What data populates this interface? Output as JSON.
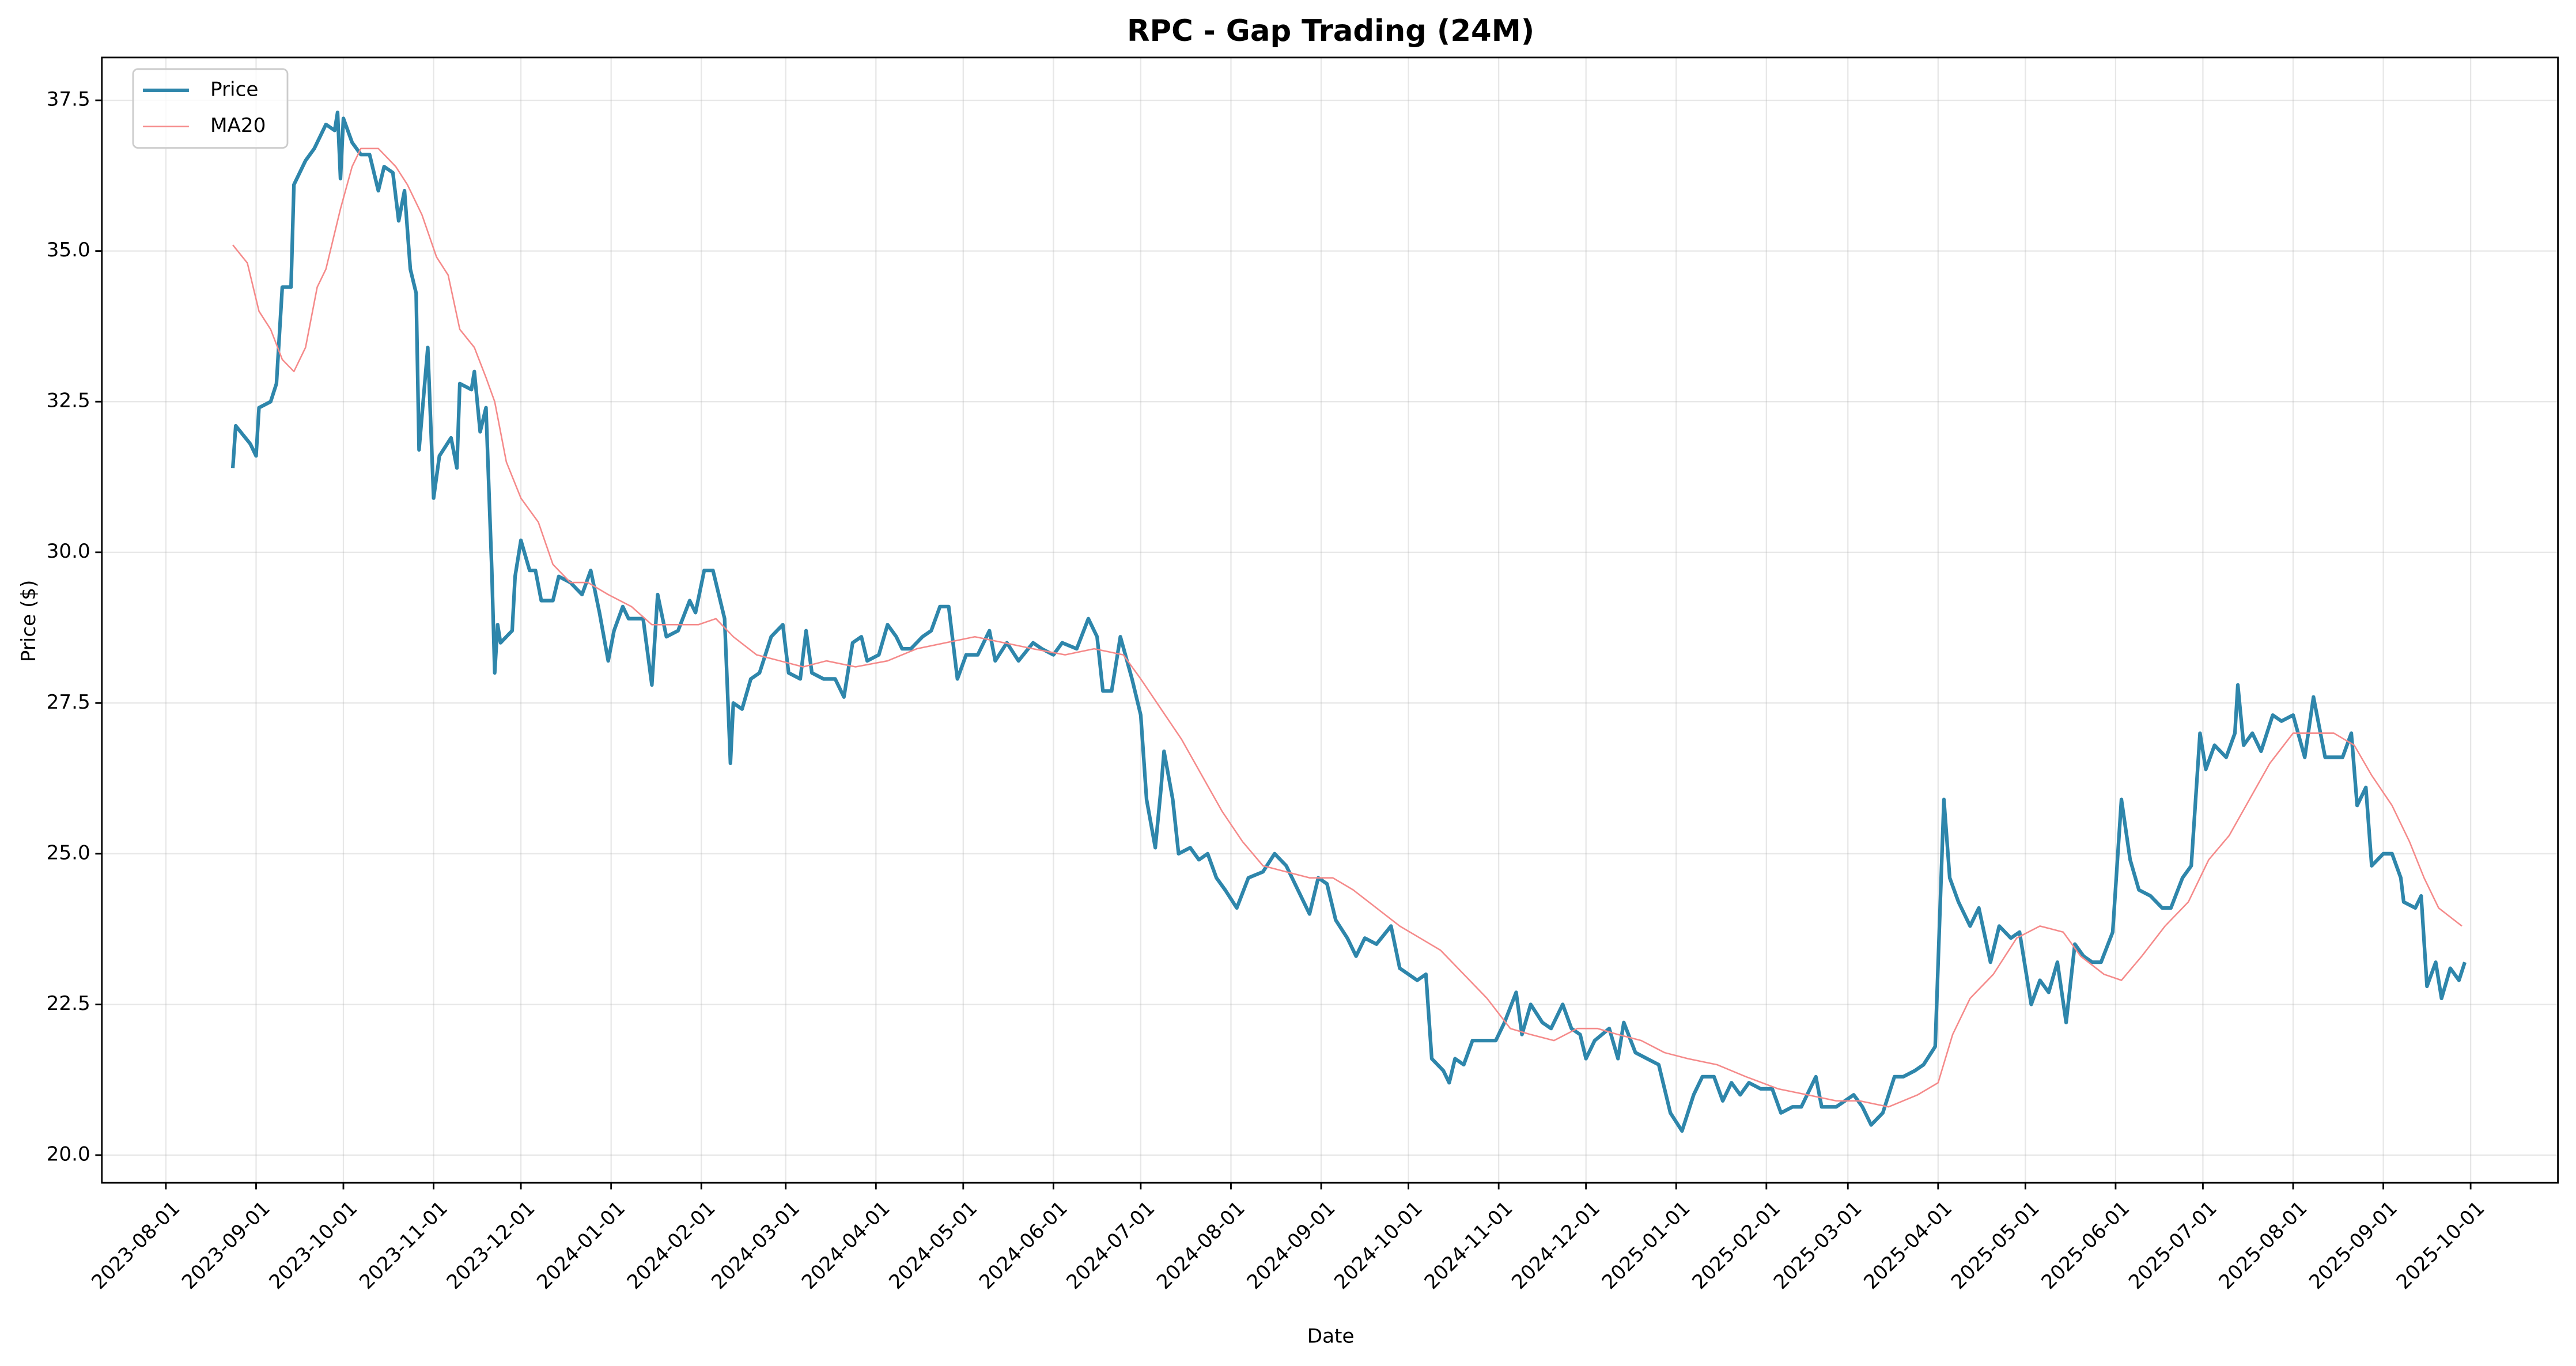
{
  "chart_data": {
    "type": "line",
    "title": "RPC - Gap Trading (24M)",
    "x_label": "Date",
    "y_label": "Price ($)",
    "xlim": [
      "2023-07-10",
      "2025-10-31"
    ],
    "xticks": [
      "2023-08-01",
      "2023-09-01",
      "2023-10-01",
      "2023-11-01",
      "2023-12-01",
      "2024-01-01",
      "2024-02-01",
      "2024-03-01",
      "2024-04-01",
      "2024-05-01",
      "2024-06-01",
      "2024-07-01",
      "2024-08-01",
      "2024-09-01",
      "2024-10-01",
      "2024-11-01",
      "2024-12-01",
      "2025-01-01",
      "2025-02-01",
      "2025-03-01",
      "2025-04-01",
      "2025-05-01",
      "2025-06-01",
      "2025-07-01",
      "2025-08-01",
      "2025-09-01",
      "2025-10-01"
    ],
    "ylim": [
      19.54,
      38.21
    ],
    "yticks": [
      {
        "value": 20,
        "label": "20.0"
      },
      22.5,
      {
        "value": 25,
        "label": "25.0"
      },
      27.5,
      {
        "value": 30,
        "label": "30.0"
      },
      32.5,
      {
        "value": 35,
        "label": "35.0"
      },
      37.5
    ],
    "grid": true,
    "legend": "upper left",
    "series": [
      {
        "name": "Price",
        "color": "#2e86ab",
        "x": [
          "2023-08-24",
          "2023-08-25",
          "2023-08-30",
          "2023-09-01",
          "2023-09-02",
          "2023-09-06",
          "2023-09-08",
          "2023-09-10",
          "2023-09-13",
          "2023-09-14",
          "2023-09-18",
          "2023-09-21",
          "2023-09-25",
          "2023-09-28",
          "2023-09-29",
          "2023-09-30",
          "2023-10-01",
          "2023-10-04",
          "2023-10-07",
          "2023-10-10",
          "2023-10-13",
          "2023-10-15",
          "2023-10-18",
          "2023-10-20",
          "2023-10-22",
          "2023-10-24",
          "2023-10-26",
          "2023-10-27",
          "2023-10-30",
          "2023-11-01",
          "2023-11-03",
          "2023-11-07",
          "2023-11-09",
          "2023-11-10",
          "2023-11-14",
          "2023-11-15",
          "2023-11-17",
          "2023-11-19",
          "2023-11-21",
          "2023-11-22",
          "2023-11-23",
          "2023-11-24",
          "2023-11-28",
          "2023-11-29",
          "2023-12-01",
          "2023-12-04",
          "2023-12-06",
          "2023-12-08",
          "2023-12-12",
          "2023-12-14",
          "2023-12-18",
          "2023-12-22",
          "2023-12-25",
          "2023-12-28",
          "2023-12-31",
          "2024-01-02",
          "2024-01-05",
          "2024-01-07",
          "2024-01-12",
          "2024-01-15",
          "2024-01-17",
          "2024-01-20",
          "2024-01-24",
          "2024-01-28",
          "2024-01-30",
          "2024-02-02",
          "2024-02-05",
          "2024-02-09",
          "2024-02-11",
          "2024-02-12",
          "2024-02-15",
          "2024-02-18",
          "2024-02-21",
          "2024-02-25",
          "2024-02-27",
          "2024-02-29",
          "2024-03-02",
          "2024-03-06",
          "2024-03-08",
          "2024-03-10",
          "2024-03-14",
          "2024-03-18",
          "2024-03-21",
          "2024-03-24",
          "2024-03-27",
          "2024-03-29",
          "2024-04-02",
          "2024-04-05",
          "2024-04-08",
          "2024-04-10",
          "2024-04-13",
          "2024-04-17",
          "2024-04-20",
          "2024-04-23",
          "2024-04-26",
          "2024-04-29",
          "2024-05-02",
          "2024-05-06",
          "2024-05-10",
          "2024-05-12",
          "2024-05-16",
          "2024-05-20",
          "2024-05-25",
          "2024-05-28",
          "2024-06-01",
          "2024-06-04",
          "2024-06-09",
          "2024-06-13",
          "2024-06-16",
          "2024-06-18",
          "2024-06-21",
          "2024-06-24",
          "2024-06-28",
          "2024-07-01",
          "2024-07-03",
          "2024-07-06",
          "2024-07-08",
          "2024-07-09",
          "2024-07-12",
          "2024-07-14",
          "2024-07-18",
          "2024-07-21",
          "2024-07-24",
          "2024-07-27",
          "2024-07-30",
          "2024-08-03",
          "2024-08-07",
          "2024-08-12",
          "2024-08-16",
          "2024-08-20",
          "2024-08-24",
          "2024-08-28",
          "2024-08-31",
          "2024-09-03",
          "2024-09-06",
          "2024-09-10",
          "2024-09-13",
          "2024-09-16",
          "2024-09-20",
          "2024-09-25",
          "2024-09-28",
          "2024-10-01",
          "2024-10-04",
          "2024-10-07",
          "2024-10-09",
          "2024-10-13",
          "2024-10-15",
          "2024-10-17",
          "2024-10-20",
          "2024-10-23",
          "2024-10-27",
          "2024-10-31",
          "2024-11-03",
          "2024-11-07",
          "2024-11-09",
          "2024-11-12",
          "2024-11-16",
          "2024-11-19",
          "2024-11-23",
          "2024-11-26",
          "2024-11-29",
          "2024-12-01",
          "2024-12-04",
          "2024-12-09",
          "2024-12-12",
          "2024-12-14",
          "2024-12-18",
          "2024-12-22",
          "2024-12-26",
          "2024-12-30",
          "2025-01-03",
          "2025-01-07",
          "2025-01-10",
          "2025-01-14",
          "2025-01-17",
          "2025-01-20",
          "2025-01-23",
          "2025-01-26",
          "2025-01-30",
          "2025-02-03",
          "2025-02-06",
          "2025-02-10",
          "2025-02-13",
          "2025-02-18",
          "2025-02-20",
          "2025-02-25",
          "2025-02-28",
          "2025-03-03",
          "2025-03-06",
          "2025-03-09",
          "2025-03-13",
          "2025-03-17",
          "2025-03-20",
          "2025-03-24",
          "2025-03-27",
          "2025-03-31",
          "2025-04-03",
          "2025-04-05",
          "2025-04-08",
          "2025-04-12",
          "2025-04-15",
          "2025-04-19",
          "2025-04-22",
          "2025-04-26",
          "2025-04-29",
          "2025-05-03",
          "2025-05-06",
          "2025-05-09",
          "2025-05-12",
          "2025-05-15",
          "2025-05-18",
          "2025-05-21",
          "2025-05-24",
          "2025-05-27",
          "2025-05-31",
          "2025-06-03",
          "2025-06-06",
          "2025-06-09",
          "2025-06-13",
          "2025-06-17",
          "2025-06-20",
          "2025-06-24",
          "2025-06-27",
          "2025-06-30",
          "2025-07-02",
          "2025-07-05",
          "2025-07-09",
          "2025-07-12",
          "2025-07-13",
          "2025-07-15",
          "2025-07-18",
          "2025-07-21",
          "2025-07-25",
          "2025-07-28",
          "2025-08-01",
          "2025-08-05",
          "2025-08-08",
          "2025-08-12",
          "2025-08-15",
          "2025-08-18",
          "2025-08-21",
          "2025-08-23",
          "2025-08-26",
          "2025-08-28",
          "2025-09-01",
          "2025-09-04",
          "2025-09-07",
          "2025-09-08",
          "2025-09-12",
          "2025-09-14",
          "2025-09-16",
          "2025-09-19",
          "2025-09-21",
          "2025-09-24",
          "2025-09-27",
          "2025-09-29"
        ],
        "values": [
          31.4,
          32.1,
          31.8,
          31.6,
          32.4,
          32.5,
          32.8,
          34.4,
          34.4,
          36.1,
          36.5,
          36.7,
          37.1,
          37.0,
          37.3,
          36.2,
          37.2,
          36.8,
          36.6,
          36.6,
          36.0,
          36.4,
          36.3,
          35.5,
          36.0,
          34.7,
          34.3,
          31.7,
          33.4,
          30.9,
          31.6,
          31.9,
          31.4,
          32.8,
          32.7,
          33.0,
          32.0,
          32.4,
          29.7,
          28.0,
          28.8,
          28.5,
          28.7,
          29.6,
          30.2,
          29.7,
          29.7,
          29.2,
          29.2,
          29.6,
          29.5,
          29.3,
          29.7,
          29.0,
          28.2,
          28.7,
          29.1,
          28.9,
          28.9,
          27.8,
          29.3,
          28.6,
          28.7,
          29.2,
          29.0,
          29.7,
          29.7,
          28.9,
          26.5,
          27.5,
          27.4,
          27.9,
          28.0,
          28.6,
          28.7,
          28.8,
          28.0,
          27.9,
          28.7,
          28.0,
          27.9,
          27.9,
          27.6,
          28.5,
          28.6,
          28.2,
          28.3,
          28.8,
          28.6,
          28.4,
          28.4,
          28.6,
          28.7,
          29.1,
          29.1,
          27.9,
          28.3,
          28.3,
          28.7,
          28.2,
          28.5,
          28.2,
          28.5,
          28.4,
          28.3,
          28.5,
          28.4,
          28.9,
          28.6,
          27.7,
          27.7,
          28.6,
          27.9,
          27.3,
          25.9,
          25.1,
          26.1,
          26.7,
          25.9,
          25.0,
          25.1,
          24.9,
          25.0,
          24.6,
          24.4,
          24.1,
          24.6,
          24.7,
          25.0,
          24.8,
          24.4,
          24.0,
          24.6,
          24.5,
          23.9,
          23.6,
          23.3,
          23.6,
          23.5,
          23.8,
          23.1,
          23.0,
          22.9,
          23.0,
          21.6,
          21.4,
          21.2,
          21.6,
          21.5,
          21.9,
          21.9,
          21.9,
          22.2,
          22.7,
          22.0,
          22.5,
          22.2,
          22.1,
          22.5,
          22.1,
          22.0,
          21.6,
          21.9,
          22.1,
          21.6,
          22.2,
          21.7,
          21.6,
          21.5,
          20.7,
          20.4,
          21.0,
          21.3,
          21.3,
          20.9,
          21.2,
          21.0,
          21.2,
          21.1,
          21.1,
          20.7,
          20.8,
          20.8,
          21.3,
          20.8,
          20.8,
          20.9,
          21.0,
          20.8,
          20.5,
          20.7,
          21.3,
          21.3,
          21.4,
          21.5,
          21.8,
          25.9,
          24.6,
          24.2,
          23.8,
          24.1,
          23.2,
          23.8,
          23.6,
          23.7,
          22.5,
          22.9,
          22.7,
          23.2,
          22.2,
          23.5,
          23.3,
          23.2,
          23.2,
          23.7,
          25.9,
          24.9,
          24.4,
          24.3,
          24.1,
          24.1,
          24.6,
          24.8,
          27.0,
          26.4,
          26.8,
          26.6,
          27.0,
          27.8,
          26.8,
          27.0,
          26.7,
          27.3,
          27.2,
          27.3,
          26.6,
          27.6,
          26.6,
          26.6,
          26.6,
          27.0,
          25.8,
          26.1,
          24.8,
          25.0,
          25.0,
          24.6,
          24.2,
          24.1,
          24.3,
          22.8,
          23.2,
          22.6,
          23.1,
          22.9,
          23.2
        ]
      },
      {
        "name": "MA20",
        "color": "#f58a8a",
        "x": [
          "2023-08-24",
          "2023-08-29",
          "2023-09-02",
          "2023-09-06",
          "2023-09-10",
          "2023-09-14",
          "2023-09-18",
          "2023-09-22",
          "2023-09-25",
          "2023-09-30",
          "2023-10-04",
          "2023-10-07",
          "2023-10-13",
          "2023-10-19",
          "2023-10-23",
          "2023-10-28",
          "2023-11-02",
          "2023-11-06",
          "2023-11-10",
          "2023-11-15",
          "2023-11-19",
          "2023-11-22",
          "2023-11-26",
          "2023-12-01",
          "2023-12-07",
          "2023-12-12",
          "2023-12-18",
          "2023-12-24",
          "2023-12-31",
          "2024-01-08",
          "2024-01-15",
          "2024-01-22",
          "2024-01-31",
          "2024-02-06",
          "2024-02-12",
          "2024-02-20",
          "2024-02-28",
          "2024-03-07",
          "2024-03-15",
          "2024-03-25",
          "2024-04-05",
          "2024-04-15",
          "2024-04-25",
          "2024-05-05",
          "2024-05-15",
          "2024-05-25",
          "2024-06-05",
          "2024-06-15",
          "2024-06-25",
          "2024-07-01",
          "2024-07-08",
          "2024-07-15",
          "2024-07-22",
          "2024-07-29",
          "2024-08-05",
          "2024-08-12",
          "2024-08-20",
          "2024-08-28",
          "2024-09-05",
          "2024-09-12",
          "2024-09-20",
          "2024-09-28",
          "2024-10-05",
          "2024-10-12",
          "2024-10-20",
          "2024-10-28",
          "2024-11-05",
          "2024-11-12",
          "2024-11-20",
          "2024-11-28",
          "2024-12-05",
          "2024-12-12",
          "2024-12-20",
          "2024-12-28",
          "2025-01-05",
          "2025-01-15",
          "2025-01-25",
          "2025-02-05",
          "2025-02-15",
          "2025-02-25",
          "2025-03-05",
          "2025-03-15",
          "2025-03-25",
          "2025-04-01",
          "2025-04-06",
          "2025-04-12",
          "2025-04-20",
          "2025-04-28",
          "2025-05-06",
          "2025-05-14",
          "2025-05-20",
          "2025-05-28",
          "2025-06-03",
          "2025-06-10",
          "2025-06-18",
          "2025-06-26",
          "2025-07-03",
          "2025-07-10",
          "2025-07-17",
          "2025-07-24",
          "2025-08-01",
          "2025-08-08",
          "2025-08-15",
          "2025-08-22",
          "2025-08-28",
          "2025-09-04",
          "2025-09-10",
          "2025-09-15",
          "2025-09-20",
          "2025-09-28"
        ],
        "values": [
          35.1,
          34.8,
          34.0,
          33.7,
          33.2,
          33.0,
          33.4,
          34.4,
          34.7,
          35.7,
          36.4,
          36.7,
          36.7,
          36.4,
          36.1,
          35.6,
          34.9,
          34.6,
          33.7,
          33.4,
          32.9,
          32.5,
          31.5,
          30.9,
          30.5,
          29.8,
          29.5,
          29.5,
          29.3,
          29.1,
          28.8,
          28.8,
          28.8,
          28.9,
          28.6,
          28.3,
          28.2,
          28.1,
          28.2,
          28.1,
          28.2,
          28.4,
          28.5,
          28.6,
          28.5,
          28.4,
          28.3,
          28.4,
          28.3,
          27.9,
          27.4,
          26.9,
          26.3,
          25.7,
          25.2,
          24.8,
          24.7,
          24.6,
          24.6,
          24.4,
          24.1,
          23.8,
          23.6,
          23.4,
          23.0,
          22.6,
          22.1,
          22.0,
          21.9,
          22.1,
          22.1,
          22.0,
          21.9,
          21.7,
          21.6,
          21.5,
          21.3,
          21.1,
          21.0,
          20.9,
          20.9,
          20.8,
          21.0,
          21.2,
          22.0,
          22.6,
          23.0,
          23.6,
          23.8,
          23.7,
          23.3,
          23.0,
          22.9,
          23.3,
          23.8,
          24.2,
          24.9,
          25.3,
          25.9,
          26.5,
          27.0,
          27.0,
          27.0,
          26.8,
          26.3,
          25.8,
          25.2,
          24.6,
          24.1,
          23.8
        ]
      }
    ]
  }
}
